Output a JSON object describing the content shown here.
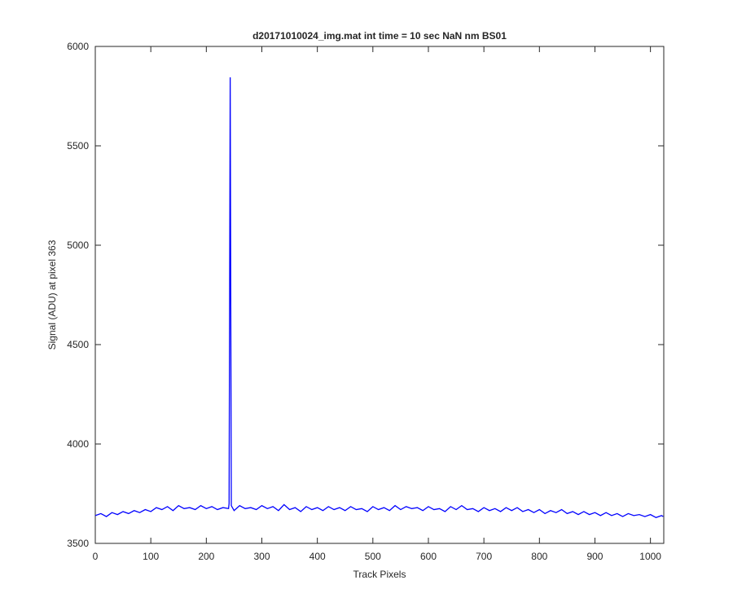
{
  "chart_data": {
    "type": "line",
    "title": "d20171010024_img.mat int time = 10 sec  NaN nm BS01",
    "xlabel": "Track Pixels",
    "ylabel": "Signal (ADU) at pixel 363",
    "xlim": [
      0,
      1024
    ],
    "ylim": [
      3500,
      6000
    ],
    "xticks": [
      0,
      100,
      200,
      300,
      400,
      500,
      600,
      700,
      800,
      900,
      1000
    ],
    "yticks": [
      3500,
      4000,
      4500,
      5000,
      5500,
      6000
    ],
    "grid": false,
    "series": [
      {
        "name": "signal",
        "color": "#0000ff",
        "x": [
          0,
          10,
          20,
          30,
          40,
          50,
          60,
          70,
          80,
          90,
          100,
          110,
          120,
          130,
          140,
          150,
          160,
          170,
          180,
          190,
          200,
          210,
          220,
          230,
          240,
          241,
          243,
          245,
          250,
          260,
          270,
          280,
          290,
          300,
          310,
          320,
          330,
          340,
          350,
          360,
          370,
          380,
          390,
          400,
          410,
          420,
          430,
          440,
          450,
          460,
          470,
          480,
          490,
          500,
          510,
          520,
          530,
          540,
          550,
          560,
          570,
          580,
          590,
          600,
          610,
          620,
          630,
          640,
          650,
          660,
          670,
          680,
          690,
          700,
          710,
          720,
          730,
          740,
          750,
          760,
          770,
          780,
          790,
          800,
          810,
          820,
          830,
          840,
          850,
          860,
          870,
          880,
          890,
          900,
          910,
          920,
          930,
          940,
          950,
          960,
          970,
          980,
          990,
          1000,
          1010,
          1020,
          1023
        ],
        "values": [
          3640,
          3650,
          3635,
          3655,
          3645,
          3660,
          3650,
          3665,
          3655,
          3670,
          3660,
          3680,
          3670,
          3685,
          3665,
          3690,
          3675,
          3680,
          3670,
          3690,
          3675,
          3685,
          3670,
          3680,
          3675,
          3700,
          5845,
          3690,
          3665,
          3690,
          3675,
          3680,
          3670,
          3690,
          3675,
          3685,
          3665,
          3695,
          3670,
          3680,
          3660,
          3685,
          3670,
          3680,
          3665,
          3685,
          3670,
          3680,
          3665,
          3685,
          3670,
          3675,
          3660,
          3685,
          3670,
          3680,
          3665,
          3690,
          3670,
          3685,
          3675,
          3680,
          3665,
          3685,
          3670,
          3675,
          3660,
          3685,
          3670,
          3690,
          3670,
          3675,
          3660,
          3680,
          3665,
          3675,
          3660,
          3680,
          3665,
          3680,
          3660,
          3670,
          3655,
          3670,
          3650,
          3665,
          3655,
          3670,
          3650,
          3660,
          3645,
          3660,
          3645,
          3655,
          3640,
          3655,
          3640,
          3650,
          3635,
          3650,
          3640,
          3645,
          3635,
          3645,
          3630,
          3640,
          3635
        ]
      }
    ]
  }
}
